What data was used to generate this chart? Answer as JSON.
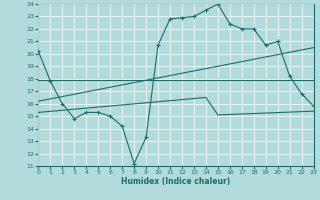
{
  "xlabel": "Humidex (Indice chaleur)",
  "xlim": [
    0,
    23
  ],
  "ylim": [
    11,
    24
  ],
  "xticks": [
    0,
    1,
    2,
    3,
    4,
    5,
    6,
    7,
    8,
    9,
    10,
    11,
    12,
    13,
    14,
    15,
    16,
    17,
    18,
    19,
    20,
    21,
    22,
    23
  ],
  "yticks": [
    11,
    12,
    13,
    14,
    15,
    16,
    17,
    18,
    19,
    20,
    21,
    22,
    23,
    24
  ],
  "bg_color": "#b2dcdc",
  "line_color": "#1a6b6b",
  "line1_x": [
    0,
    1,
    2,
    3,
    4,
    5,
    6,
    7,
    8,
    9,
    10,
    11,
    12,
    13,
    14,
    15,
    16,
    17,
    18,
    19,
    20,
    21,
    22,
    23
  ],
  "line1_y": [
    20.2,
    17.8,
    16.0,
    14.8,
    15.3,
    15.3,
    15.0,
    14.2,
    11.2,
    13.3,
    20.7,
    22.8,
    22.9,
    23.0,
    23.5,
    24.0,
    22.4,
    22.0,
    22.0,
    20.7,
    21.0,
    18.2,
    16.8,
    15.8
  ],
  "line2_x": [
    0,
    23
  ],
  "line2_y": [
    17.9,
    17.9
  ],
  "line3_x": [
    0,
    23
  ],
  "line3_y": [
    16.2,
    20.5
  ],
  "line4_x": [
    0,
    14,
    15,
    23
  ],
  "line4_y": [
    15.3,
    16.5,
    15.1,
    15.4
  ]
}
